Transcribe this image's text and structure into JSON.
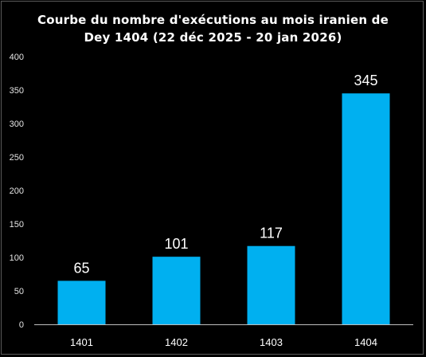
{
  "chart_data": {
    "type": "bar",
    "title": "Courbe du nombre d'exécutions au mois iranien de",
    "subtitle": "Dey 1404 (22 déc 2025 - 20 jan 2026)",
    "categories": [
      "1401",
      "1402",
      "1403",
      "1404"
    ],
    "values": [
      65,
      101,
      117,
      345
    ],
    "data_labels": [
      "65",
      "101",
      "117",
      "345"
    ],
    "ylim": [
      0,
      400
    ],
    "yticks": [
      "0",
      "50",
      "100",
      "150",
      "200",
      "250",
      "300",
      "350",
      "400"
    ],
    "grid": false,
    "legend": "none",
    "colors": {
      "bar": "#00B0F0",
      "background": "#000000",
      "text": "#FFFFFF",
      "axis": "#BFBFBF"
    }
  }
}
